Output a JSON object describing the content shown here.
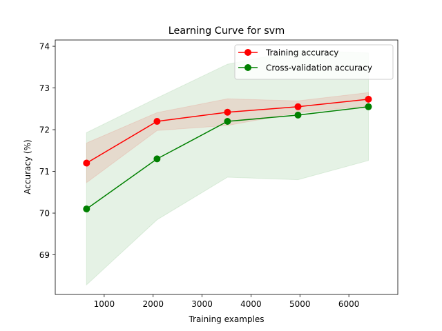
{
  "chart_data": {
    "type": "line",
    "title": "Learning Curve for svm",
    "xlabel": "Training examples",
    "ylabel": "Accuracy (%)",
    "xlim": [
      0,
      7000
    ],
    "ylim": [
      68.05,
      74.15
    ],
    "xticks": [
      1000,
      2000,
      3000,
      4000,
      5000,
      6000
    ],
    "yticks": [
      69,
      70,
      71,
      72,
      73,
      74
    ],
    "grid": false,
    "legend_position": "top-right",
    "x": [
      640,
      2080,
      3520,
      4960,
      6400
    ],
    "series": [
      {
        "name": "Training accuracy",
        "color": "#ff0000",
        "marker": "circle",
        "values": [
          71.2,
          72.2,
          72.42,
          72.55,
          72.73
        ],
        "band_lower": [
          70.73,
          71.98,
          72.1,
          72.41,
          72.57
        ],
        "band_upper": [
          71.68,
          72.41,
          72.74,
          72.69,
          72.89
        ]
      },
      {
        "name": "Cross-validation accuracy",
        "color": "#008000",
        "marker": "circle",
        "values": [
          70.1,
          71.3,
          72.2,
          72.35,
          72.55
        ],
        "band_lower": [
          68.28,
          69.84,
          70.86,
          70.8,
          71.26
        ],
        "band_upper": [
          71.93,
          72.76,
          73.57,
          73.9,
          73.84
        ]
      }
    ]
  }
}
